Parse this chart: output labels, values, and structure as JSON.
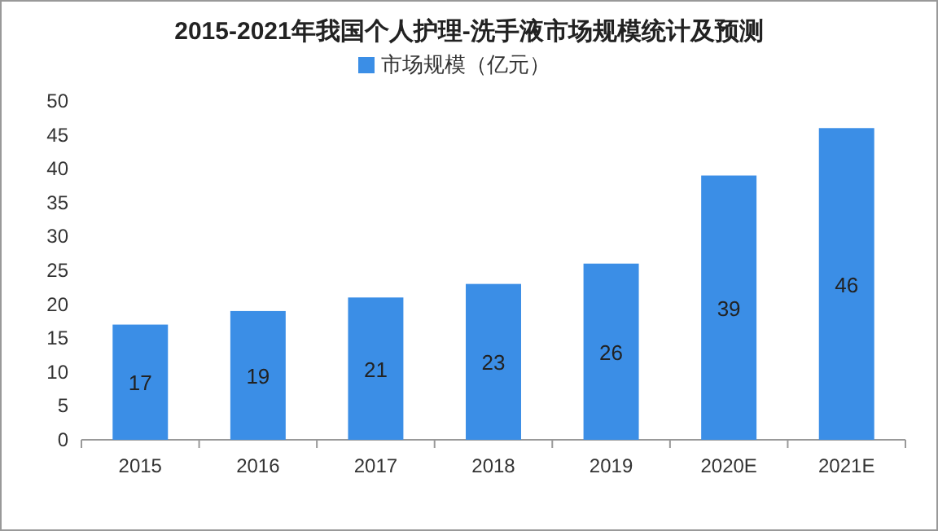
{
  "chart_data": {
    "type": "bar",
    "title": "2015-2021年我国个人护理-洗手液市场规模统计及预测",
    "categories": [
      "2015",
      "2016",
      "2017",
      "2018",
      "2019",
      "2020E",
      "2021E"
    ],
    "series": [
      {
        "name": "市场规模（亿元）",
        "color": "#3b8ee6",
        "values": [
          17,
          19,
          21,
          23,
          26,
          39,
          46
        ]
      }
    ],
    "ylim": [
      0,
      50
    ],
    "yticks": [
      0,
      5,
      10,
      15,
      20,
      25,
      30,
      35,
      40,
      45,
      50
    ],
    "data_labels": true,
    "legend": "top",
    "grid": false
  }
}
